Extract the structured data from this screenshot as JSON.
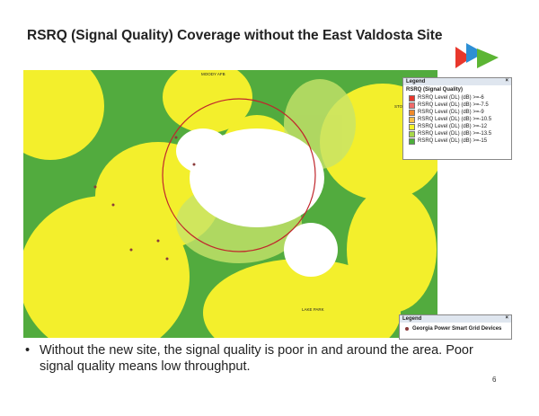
{
  "header": {
    "title": "RSRQ (Signal Quality) Coverage without the East Valdosta Site"
  },
  "map": {
    "place_labels": [
      "MOODY AFB",
      "STOCKTON (GA)",
      "LAKE PARK"
    ]
  },
  "legend": {
    "title": "Legend",
    "heading": "RSRQ (Signal Quality)",
    "items": [
      {
        "label": "RSRQ Level (DL) (dB) >=-6",
        "color": "#e8372c"
      },
      {
        "label": "RSRQ Level (DL) (dB) >=-7.5",
        "color": "#ef6a6a"
      },
      {
        "label": "RSRQ Level (DL) (dB) >=-9",
        "color": "#f08a2a"
      },
      {
        "label": "RSRQ Level (DL) (dB) >=-10.5",
        "color": "#f7c04a"
      },
      {
        "label": "RSRQ Level (DL) (dB) >=-12",
        "color": "#f5f22a"
      },
      {
        "label": "RSRQ Level (DL) (dB) >=-13.5",
        "color": "#a8d84a"
      },
      {
        "label": "RSRQ Level (DL) (dB) >=-15",
        "color": "#4cae3c"
      }
    ]
  },
  "device_legend": {
    "title": "Legend",
    "items": [
      "Georgia Power Smart Grid Devices"
    ]
  },
  "body": {
    "bullets": [
      "Without the new site, the signal quality is poor in and around the area.  Poor signal quality means low throughput."
    ]
  },
  "footer": {
    "page_number": "6"
  }
}
